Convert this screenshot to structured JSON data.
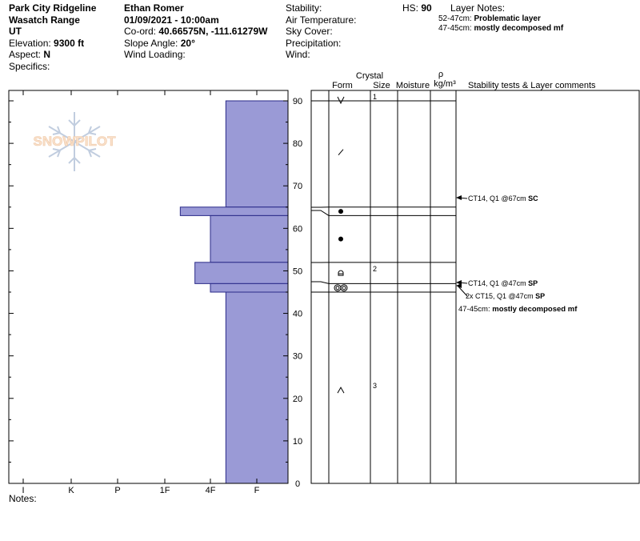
{
  "site": {
    "name": "Park City Ridgeline",
    "range": "Wasatch Range",
    "state": "UT",
    "elevation_label": "Elevation:",
    "elevation_value": "9300 ft",
    "aspect_label": "Aspect:",
    "aspect_value": "N",
    "specifics_label": "Specifics:"
  },
  "observer": {
    "name": "Ethan Romer",
    "datetime": "01/09/2021 - 10:00am",
    "coord_label": "Co-ord:",
    "coord_value": "40.66575N, -111.61279W",
    "slope_label": "Slope Angle:",
    "slope_value": "20°",
    "wind_loading_label": "Wind Loading:"
  },
  "conditions": {
    "stability_label": "Stability:",
    "air_temp_label": "Air Temperature:",
    "sky_cover_label": "Sky Cover:",
    "precip_label": "Precipitation:",
    "wind_label": "Wind:",
    "hs_label": "HS:",
    "hs_value": "90"
  },
  "layer_notes": {
    "title": "Layer Notes:",
    "items": [
      {
        "range": "52-47cm:",
        "text": "Problematic layer"
      },
      {
        "range": "47-45cm:",
        "text": "mostly decomposed mf"
      }
    ]
  },
  "logo_text": "SNOWPILOT",
  "notes_label": "Notes:",
  "colors": {
    "hardness_fill": "#9a9ad6",
    "hardness_stroke": "#2a2a88"
  },
  "chart_data": {
    "type": "snow_profile",
    "x_axis": {
      "ticks": [
        "I",
        "K",
        "P",
        "1F",
        "4F",
        "F"
      ]
    },
    "y_axis": {
      "min": 0,
      "max": 90,
      "ticks": [
        0,
        10,
        20,
        30,
        40,
        50,
        60,
        70,
        80,
        90
      ]
    },
    "hardness_layers": [
      {
        "top": 90,
        "bottom": 65,
        "hardness": "4F+"
      },
      {
        "top": 65,
        "bottom": 63,
        "hardness": "1F+"
      },
      {
        "top": 63,
        "bottom": 52,
        "hardness": "4F"
      },
      {
        "top": 52,
        "bottom": 47,
        "hardness": "4F-"
      },
      {
        "top": 47,
        "bottom": 45,
        "hardness": "4F"
      },
      {
        "top": 45,
        "bottom": 0,
        "hardness": "4F+"
      }
    ],
    "columns": {
      "crystal_label": "Crystal",
      "form": "Form",
      "size": "Size",
      "moisture": "Moisture",
      "rho": "ρ",
      "density_unit": "kg/m³",
      "comments": "Stability tests & Layer comments"
    },
    "layer_boundaries": [
      65,
      63,
      52,
      47,
      45
    ],
    "crystal_rows": [
      {
        "depth": 90,
        "form": "V",
        "size": "1"
      },
      {
        "depth": 78,
        "form": "/",
        "size": ""
      },
      {
        "depth": 64,
        "form": "●",
        "size": ""
      },
      {
        "depth": 57.5,
        "form": "●",
        "size": ""
      },
      {
        "depth": 49.5,
        "form": "⌓",
        "size": "2"
      },
      {
        "depth": 46,
        "form": "◎◎",
        "size": ""
      },
      {
        "depth": 22,
        "form": "^",
        "size": "3"
      }
    ],
    "stability_tests": [
      {
        "depth": 67,
        "label": "CT14, Q1 @67cm",
        "bold": "SC"
      },
      {
        "depth": 47,
        "label": "CT14, Q1 @47cm",
        "bold": "SP"
      },
      {
        "depth": 47,
        "label": "2x CT15, Q1 @47cm",
        "bold": "SP"
      }
    ],
    "layer_comment": {
      "range": "47-45cm:",
      "text": "mostly decomposed mf"
    }
  }
}
